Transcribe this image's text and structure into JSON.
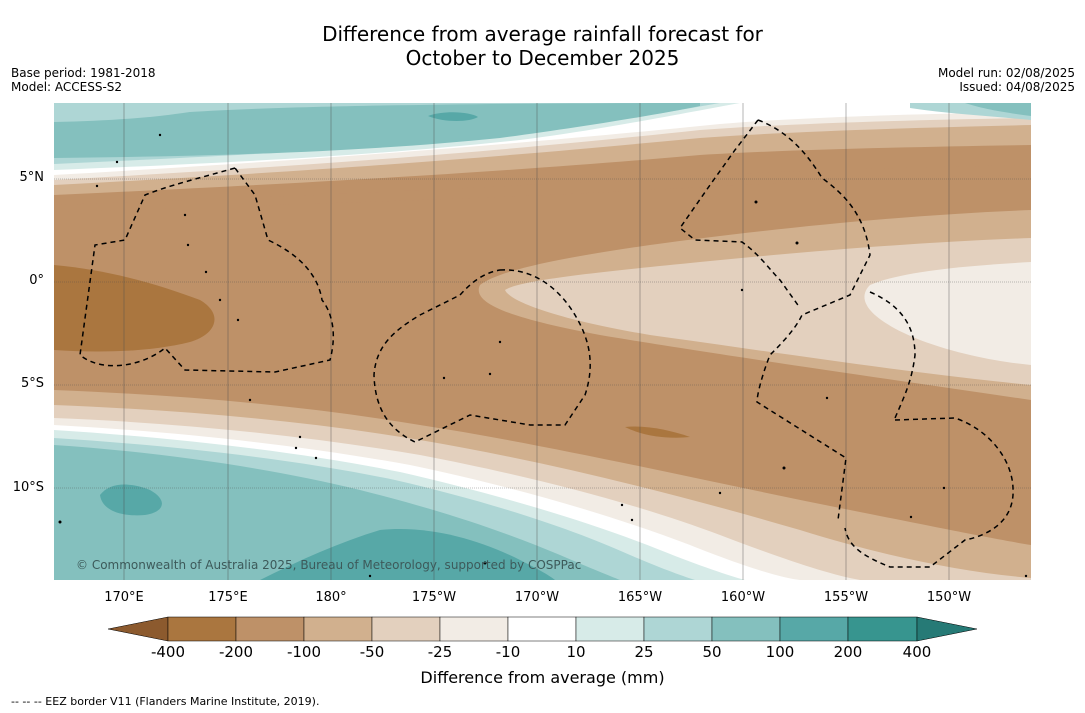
{
  "title_line1": "Difference from average rainfall forecast for",
  "title_line2": "October to December 2025",
  "base_period": "Base period: 1981-2018",
  "model": "Model: ACCESS-S2",
  "model_run": "Model run: 02/08/2025",
  "issued": "Issued: 04/08/2025",
  "copyright": "© Commonwealth of Australia 2025, Bureau of Meteorology, supported by COSPPac",
  "lat_labels": [
    "5°N",
    "0°",
    "5°S",
    "10°S"
  ],
  "lon_labels": [
    "170°E",
    "175°E",
    "180°",
    "175°W",
    "170°W",
    "165°W",
    "160°W",
    "155°W",
    "150°W"
  ],
  "colorbar": {
    "title": "Difference from average (mm)",
    "ticks": [
      "-400",
      "-200",
      "-100",
      "-50",
      "-25",
      "-10",
      "10",
      "25",
      "50",
      "100",
      "200",
      "400"
    ],
    "colors": {
      "lt_neg400": "#8c5a2e",
      "neg400_neg200": "#aa763f",
      "neg200_neg100": "#be9168",
      "neg100_neg50": "#d1b08e",
      "neg50_neg25": "#e3d0be",
      "neg25_neg10": "#f2ece5",
      "neg10_10": "#ffffff",
      "10_25": "#d7ebe8",
      "25_50": "#aed6d5",
      "50_100": "#84c0be",
      "100_200": "#57a8a7",
      "200_400": "#37958f",
      "gt_400": "#267a76"
    }
  },
  "footer": "--  --  -- EEZ border V11 (Flanders Marine Institute, 2019)."
}
